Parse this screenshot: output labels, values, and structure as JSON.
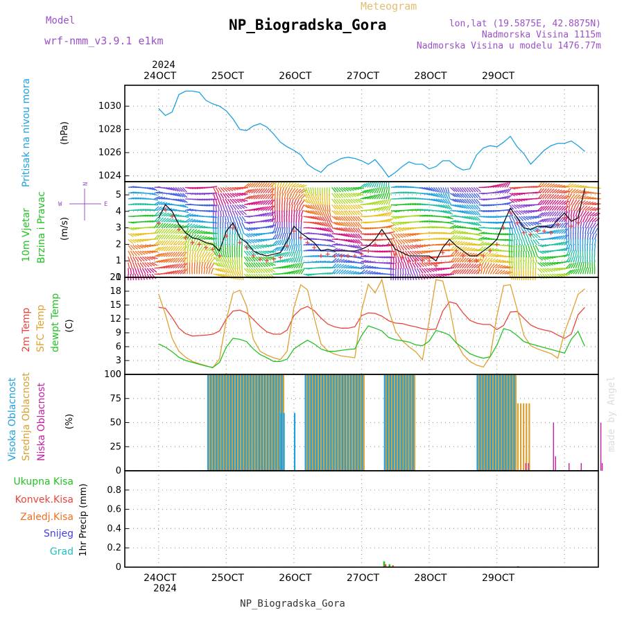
{
  "header": {
    "model_label": "Model",
    "model_name": "wrf-nmm_v3.9.1 e1km",
    "meteogram_label": "Meteogram",
    "station": "NP_Biogradska_Gora",
    "lonlat": "lon,lat (19.5875E, 42.8875N)",
    "elevation": "Nadmorska Visina 1115m",
    "model_elevation": "Nadmorska Visina u modelu 1476.77m",
    "footer_station": "NP_Biogradska_Gora",
    "watermark": "made by Angel"
  },
  "time_axis": {
    "year": "2024",
    "ticks": [
      "24OCT",
      "25OCT",
      "26OCT",
      "27OCT",
      "28OCT",
      "29OCT"
    ]
  },
  "colors": {
    "pressure": "#1ea0e0",
    "t2m": "#e8443a",
    "sfc": "#e0a030",
    "dewpt": "#22c222",
    "high_cloud": "#1ea0e0",
    "mid_cloud": "#d8a030",
    "low_cloud": "#c020a0",
    "total_precip": "#22c222",
    "conv_precip": "#e8443a",
    "frz_precip": "#f07020",
    "snow": "#4040e0",
    "graupel": "#20c0c0"
  },
  "chart_data": [
    {
      "type": "line",
      "name": "pressure",
      "ylabel_colored": "Pritisak na nivou mora",
      "ylabel": "(hPa)",
      "ylim": [
        1023.5,
        1031.8
      ],
      "yticks": [
        "1024",
        "1026",
        "1028",
        "1030"
      ],
      "yticks_values": [
        1024,
        1026,
        1028,
        1030
      ],
      "series": [
        {
          "name": "Pritisak na nivou mora",
          "x": [
            0,
            0.1,
            0.2,
            0.3,
            0.4,
            0.5,
            0.6,
            0.7,
            0.8,
            0.9,
            1.0,
            1.1,
            1.2,
            1.3,
            1.4,
            1.5,
            1.6,
            1.7,
            1.8,
            1.9,
            2.0,
            2.1,
            2.2,
            2.3,
            2.4,
            2.5,
            2.6,
            2.7,
            2.8,
            2.9,
            3.0,
            3.1,
            3.2,
            3.3,
            3.4,
            3.5,
            3.6,
            3.7,
            3.8,
            3.9,
            4.0,
            4.1,
            4.2,
            4.3,
            4.4,
            4.5,
            4.6,
            4.7,
            4.8,
            4.9,
            5.0,
            5.1,
            5.2,
            5.3,
            5.4,
            5.5,
            5.6,
            5.7,
            5.8,
            5.9,
            6.0,
            6.1,
            6.2,
            6.3
          ],
          "values": [
            1029.8,
            1029.2,
            1029.5,
            1031.0,
            1031.3,
            1031.3,
            1031.2,
            1030.5,
            1030.2,
            1030.0,
            1029.6,
            1028.9,
            1028.0,
            1027.9,
            1028.3,
            1028.5,
            1028.2,
            1027.6,
            1026.9,
            1026.5,
            1026.2,
            1025.8,
            1025.0,
            1024.6,
            1024.3,
            1024.9,
            1025.2,
            1025.5,
            1025.6,
            1025.5,
            1025.3,
            1025.0,
            1025.4,
            1024.7,
            1023.9,
            1024.3,
            1024.8,
            1025.2,
            1025.0,
            1025.0,
            1024.6,
            1024.8,
            1025.3,
            1025.3,
            1024.8,
            1024.5,
            1024.6,
            1025.8,
            1026.4,
            1026.6,
            1026.5,
            1026.9,
            1027.4,
            1026.5,
            1025.9,
            1025.0,
            1025.6,
            1026.2,
            1026.6,
            1026.8,
            1026.8,
            1027.0,
            1026.6,
            1026.1
          ]
        }
      ]
    },
    {
      "type": "line",
      "name": "wind",
      "ylabel_colored": "10m Vjetar Brzina i Pravac",
      "ylabel": "(m/s)",
      "compass": [
        "N",
        "E",
        "W"
      ],
      "ylim": [
        0,
        5.8
      ],
      "yticks": [
        "0",
        "1",
        "2",
        "3",
        "4",
        "5"
      ],
      "yticks_values": [
        0,
        1,
        2,
        3,
        4,
        5
      ],
      "series": [
        {
          "name": "speed",
          "x": [
            0,
            0.1,
            0.2,
            0.3,
            0.4,
            0.5,
            0.6,
            0.7,
            0.8,
            0.9,
            1.0,
            1.1,
            1.2,
            1.3,
            1.4,
            1.5,
            1.6,
            1.7,
            1.8,
            1.9,
            2.0,
            2.1,
            2.2,
            2.3,
            2.4,
            2.5,
            2.6,
            2.7,
            2.8,
            2.9,
            3.0,
            3.1,
            3.2,
            3.3,
            3.4,
            3.5,
            3.6,
            3.7,
            3.8,
            3.9,
            4.0,
            4.1,
            4.2,
            4.3,
            4.4,
            4.5,
            4.6,
            4.7,
            4.8,
            4.9,
            5.0,
            5.1,
            5.2,
            5.3,
            5.4,
            5.5,
            5.6,
            5.7,
            5.8,
            5.9,
            6.0,
            6.1,
            6.2,
            6.3
          ],
          "values": [
            3.6,
            4.4,
            4.0,
            3.2,
            2.7,
            2.4,
            2.3,
            2.1,
            2.0,
            1.6,
            2.8,
            3.3,
            2.4,
            2.1,
            1.6,
            1.4,
            1.3,
            1.4,
            1.5,
            2.2,
            3.1,
            2.7,
            2.4,
            2.1,
            1.6,
            1.7,
            1.6,
            1.6,
            1.6,
            1.6,
            1.7,
            1.9,
            2.3,
            2.9,
            2.3,
            1.7,
            1.5,
            1.3,
            1.3,
            1.3,
            1.3,
            1.0,
            1.8,
            2.3,
            1.9,
            1.6,
            1.3,
            1.3,
            1.6,
            1.9,
            2.3,
            3.3,
            4.2,
            3.6,
            3.0,
            2.9,
            3.1,
            3.1,
            3.0,
            3.5,
            3.9,
            3.4,
            3.6,
            5.4
          ]
        }
      ]
    },
    {
      "type": "line",
      "name": "temperature",
      "ylabel_colored": [
        "2m Temp",
        "SFC Temp",
        "dewpt Temp"
      ],
      "ylabel": "(C)",
      "ylim": [
        0,
        21
      ],
      "yticks": [
        "0",
        "3",
        "6",
        "9",
        "12",
        "15",
        "18",
        "21"
      ],
      "yticks_values": [
        0,
        3,
        6,
        9,
        12,
        15,
        18,
        21
      ],
      "series": [
        {
          "name": "2m Temp",
          "x": [
            0,
            0.1,
            0.2,
            0.3,
            0.4,
            0.5,
            0.6,
            0.7,
            0.8,
            0.9,
            1.0,
            1.1,
            1.2,
            1.3,
            1.4,
            1.5,
            1.6,
            1.7,
            1.8,
            1.9,
            2.0,
            2.1,
            2.2,
            2.3,
            2.4,
            2.5,
            2.6,
            2.7,
            2.8,
            2.9,
            3.0,
            3.1,
            3.2,
            3.3,
            3.4,
            3.5,
            3.6,
            3.7,
            3.8,
            3.9,
            4.0,
            4.1,
            4.2,
            4.3,
            4.4,
            4.5,
            4.6,
            4.7,
            4.8,
            4.9,
            5.0,
            5.1,
            5.2,
            5.3,
            5.4,
            5.5,
            5.6,
            5.7,
            5.8,
            5.9,
            6.0,
            6.1,
            6.2,
            6.3
          ],
          "values": [
            14.5,
            14.3,
            12.3,
            10.0,
            8.8,
            8.3,
            8.4,
            8.5,
            8.7,
            9.4,
            12.0,
            13.7,
            13.9,
            13.3,
            11.9,
            10.4,
            9.2,
            8.7,
            8.7,
            9.6,
            12.7,
            14.1,
            14.7,
            13.8,
            12.2,
            10.9,
            10.3,
            10.0,
            10.0,
            10.3,
            12.7,
            13.3,
            13.2,
            12.6,
            11.6,
            11.1,
            11.0,
            10.6,
            10.3,
            9.9,
            9.7,
            9.8,
            13.7,
            15.7,
            15.3,
            13.3,
            11.7,
            11.1,
            10.8,
            10.8,
            9.7,
            10.6,
            13.5,
            13.6,
            12.1,
            10.7,
            10.0,
            9.6,
            9.3,
            8.5,
            7.8,
            8.7,
            12.9,
            14.5
          ]
        },
        {
          "name": "SFC Temp",
          "x": [
            0,
            0.1,
            0.2,
            0.3,
            0.4,
            0.5,
            0.6,
            0.7,
            0.8,
            0.9,
            1.0,
            1.1,
            1.2,
            1.3,
            1.4,
            1.5,
            1.6,
            1.7,
            1.8,
            1.9,
            2.0,
            2.1,
            2.2,
            2.3,
            2.4,
            2.5,
            2.6,
            2.7,
            2.8,
            2.9,
            3.0,
            3.1,
            3.2,
            3.3,
            3.4,
            3.5,
            3.6,
            3.7,
            3.8,
            3.9,
            4.0,
            4.1,
            4.2,
            4.3,
            4.4,
            4.5,
            4.6,
            4.7,
            4.8,
            4.9,
            5.0,
            5.1,
            5.2,
            5.3,
            5.4,
            5.5,
            5.6,
            5.7,
            5.8,
            5.9,
            6.0,
            6.1,
            6.2,
            6.3
          ],
          "values": [
            17.4,
            13.0,
            7.8,
            5.0,
            3.7,
            2.8,
            2.3,
            1.9,
            1.4,
            3.4,
            11.8,
            17.6,
            18.2,
            14.8,
            7.6,
            5.0,
            4.2,
            3.6,
            3.2,
            5.0,
            14.5,
            19.4,
            18.3,
            12.3,
            6.6,
            5.1,
            4.4,
            4.0,
            3.8,
            3.6,
            13.8,
            19.5,
            17.6,
            20.5,
            14.0,
            9.4,
            7.3,
            6.0,
            4.9,
            3.2,
            11.7,
            20.5,
            20.2,
            14.6,
            7.0,
            4.3,
            2.8,
            2.0,
            1.6,
            3.8,
            12.6,
            19.2,
            19.4,
            14.1,
            8.4,
            6.2,
            5.5,
            5.0,
            4.5,
            3.5,
            9.1,
            13.1,
            17.3,
            18.5
          ]
        },
        {
          "name": "dewpt Temp",
          "x": [
            0,
            0.1,
            0.2,
            0.3,
            0.4,
            0.5,
            0.6,
            0.7,
            0.8,
            0.9,
            1.0,
            1.1,
            1.2,
            1.3,
            1.4,
            1.5,
            1.6,
            1.7,
            1.8,
            1.9,
            2.0,
            2.1,
            2.2,
            2.3,
            2.4,
            2.5,
            2.6,
            2.7,
            2.8,
            2.9,
            3.0,
            3.1,
            3.2,
            3.3,
            3.4,
            3.5,
            3.6,
            3.7,
            3.8,
            3.9,
            4.0,
            4.1,
            4.2,
            4.3,
            4.4,
            4.5,
            4.6,
            4.7,
            4.8,
            4.9,
            5.0,
            5.1,
            5.2,
            5.3,
            5.4,
            5.5,
            5.6,
            5.7,
            5.8,
            5.9,
            6.0,
            6.1,
            6.2,
            6.3
          ],
          "values": [
            6.6,
            5.9,
            4.9,
            3.7,
            3.0,
            2.6,
            2.2,
            1.8,
            1.5,
            2.6,
            5.9,
            7.8,
            7.6,
            7.1,
            5.5,
            4.3,
            3.6,
            2.8,
            2.8,
            3.3,
            5.5,
            6.5,
            7.4,
            6.6,
            5.5,
            5.0,
            5.0,
            5.2,
            5.4,
            5.5,
            8.4,
            10.5,
            10.0,
            9.4,
            8.0,
            7.5,
            7.3,
            7.0,
            6.4,
            6.2,
            7.2,
            9.5,
            9.1,
            8.5,
            6.8,
            5.7,
            4.5,
            3.9,
            3.5,
            3.8,
            6.3,
            9.9,
            9.5,
            8.4,
            7.1,
            6.6,
            6.2,
            5.8,
            5.4,
            5.0,
            4.6,
            7.6,
            9.3,
            6.1
          ]
        }
      ]
    },
    {
      "type": "bar",
      "name": "clouds",
      "ylabel_colored": [
        "Visoka Oblacnost",
        "Srednja Oblacnost",
        "Niska Oblacnost"
      ],
      "ylabel": "(%)",
      "ylim": [
        0,
        100
      ],
      "yticks": [
        "0",
        "25",
        "50",
        "75",
        "100"
      ],
      "yticks_values": [
        0,
        25,
        50,
        75,
        100
      ],
      "groups": [
        {
          "start": 0.72,
          "end": 1.85,
          "value": 100,
          "series": [
            "high",
            "mid"
          ]
        },
        {
          "start": 1.8,
          "end": 1.85,
          "value": 60,
          "series": [
            "high"
          ]
        },
        {
          "start": 2.0,
          "end": 2.02,
          "value": 60,
          "series": [
            "high"
          ]
        },
        {
          "start": 2.16,
          "end": 3.0,
          "value": 100,
          "series": [
            "high",
            "mid"
          ]
        },
        {
          "start": 3.33,
          "end": 3.78,
          "value": 100,
          "series": [
            "high",
            "mid"
          ]
        },
        {
          "start": 4.7,
          "end": 5.25,
          "value": 100,
          "series": [
            "high",
            "mid"
          ]
        },
        {
          "start": 5.3,
          "end": 5.5,
          "value": 70,
          "series": [
            "mid"
          ]
        }
      ],
      "low_cloud_spikes": [
        {
          "x": 5.42,
          "value": 8
        },
        {
          "x": 5.46,
          "value": 8
        },
        {
          "x": 5.83,
          "value": 50
        },
        {
          "x": 5.86,
          "value": 15
        },
        {
          "x": 6.06,
          "value": 8
        },
        {
          "x": 6.24,
          "value": 8
        },
        {
          "x": 6.53,
          "value": 50
        },
        {
          "x": 6.55,
          "value": 8
        }
      ]
    },
    {
      "type": "bar",
      "name": "precipitation",
      "ylabel": "1hr Precip (mm)",
      "legend": [
        "Ukupna Kisa",
        "Konvek.Kisa",
        "Zaledj.Kisa",
        "Snijeg",
        "Grad"
      ],
      "ylim": [
        0,
        1.0
      ],
      "yticks": [
        "0",
        "0.2",
        "0.4",
        "0.6",
        "0.8"
      ],
      "yticks_values": [
        0,
        0.2,
        0.4,
        0.6,
        0.8
      ],
      "bars": [
        {
          "x": 3.32,
          "value": 0.06,
          "series": "Ukupna Kisa"
        },
        {
          "x": 3.34,
          "value": 0.03,
          "series": "Konvek.Kisa"
        },
        {
          "x": 3.4,
          "value": 0.03,
          "series": "Ukupna Kisa"
        },
        {
          "x": 3.45,
          "value": 0.02,
          "series": "Zaledj.Kisa"
        },
        {
          "x": 5.3,
          "value": 0.01,
          "series": "Ukupna Kisa"
        }
      ]
    }
  ]
}
